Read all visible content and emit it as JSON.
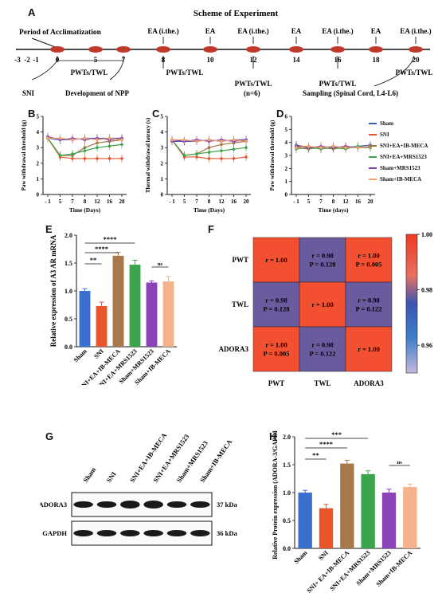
{
  "panel_letters": {
    "a": "A",
    "b": "B",
    "c": "C",
    "d": "D",
    "e": "E",
    "f": "F",
    "g": "G",
    "h": "H"
  },
  "scheme": {
    "title": "Scheme of Experiment",
    "acclimatization": "Period of Acclimatization",
    "days": [
      "-3",
      "-2",
      "-1",
      "0",
      "5",
      "7",
      "8",
      "10",
      "12",
      "14",
      "16",
      "18",
      "20"
    ],
    "ea_labels": [
      {
        "day": "8",
        "text": "EA (i.the.)"
      },
      {
        "day": "10",
        "text": "EA"
      },
      {
        "day": "12",
        "text": "EA (i.the.)"
      },
      {
        "day": "14",
        "text": "EA"
      },
      {
        "day": "16",
        "text": "EA (i.the.)"
      },
      {
        "day": "18",
        "text": "EA"
      },
      {
        "day": "20",
        "text": "EA (i.the.)"
      }
    ],
    "pwt_labels": [
      "PWTs/TWL",
      "PWTs/TWL",
      "PWTs/TWL",
      "PWTs/TWL",
      "PWTs/TWL"
    ],
    "sni": "SNI",
    "npp": "Development of NPP",
    "n": "(n=6)",
    "sampling": "Sampling (Spinal Cord, L4-L6)"
  },
  "legend": {
    "items": [
      {
        "name": "Sham",
        "color": "#3a5db5"
      },
      {
        "name": "SNI",
        "color": "#e8562a"
      },
      {
        "name": "SNI+EA+IB-MECA",
        "color": "#a07040"
      },
      {
        "name": "SNI+EA+MRS1523",
        "color": "#3aa54a"
      },
      {
        "name": "Sham+MRS1523",
        "color": "#7a3fb0"
      },
      {
        "name": "Sham+IB-MECA",
        "color": "#f2a072"
      }
    ]
  },
  "chart_data": [
    {
      "id": "B",
      "type": "line",
      "ylabel": "Paw withdrawal threshold (g)",
      "xlabel": "Time (Days)",
      "x": [
        "- 1",
        "5",
        "7",
        "8",
        "12",
        "16",
        "20"
      ],
      "ylim": [
        0,
        5
      ],
      "yticks": [
        "0",
        "1",
        "2",
        "3",
        "4",
        "5"
      ],
      "series": [
        {
          "name": "Sham",
          "values": [
            3.6,
            3.5,
            3.5,
            3.6,
            3.6,
            3.6,
            3.6
          ]
        },
        {
          "name": "SNI",
          "values": [
            3.6,
            2.4,
            2.3,
            2.3,
            2.3,
            2.3,
            2.3
          ]
        },
        {
          "name": "SNI+EA+IB-MECA",
          "values": [
            3.6,
            2.5,
            2.5,
            3.0,
            3.3,
            3.4,
            3.5
          ]
        },
        {
          "name": "SNI+EA+MRS1523",
          "values": [
            3.6,
            2.5,
            2.6,
            2.8,
            3.0,
            3.1,
            3.2
          ]
        },
        {
          "name": "Sham+MRS1523",
          "values": [
            3.7,
            3.5,
            3.6,
            3.5,
            3.6,
            3.5,
            3.6
          ]
        },
        {
          "name": "Sham+IB-MECA",
          "values": [
            3.6,
            3.6,
            3.5,
            3.6,
            3.5,
            3.6,
            3.5
          ]
        }
      ]
    },
    {
      "id": "C",
      "type": "line",
      "ylabel": "Thermal withdrawal latency (s)",
      "xlabel": "Time (Days)",
      "x": [
        "- 1",
        "5",
        "7",
        "8",
        "12",
        "16",
        "20"
      ],
      "ylim": [
        0,
        5
      ],
      "yticks": [
        "0",
        "1",
        "2",
        "3",
        "4",
        "5"
      ],
      "series": [
        {
          "name": "Sham",
          "values": [
            3.5,
            3.4,
            3.4,
            3.5,
            3.4,
            3.5,
            3.5
          ]
        },
        {
          "name": "SNI",
          "values": [
            3.5,
            2.4,
            2.4,
            2.3,
            2.3,
            2.3,
            2.4
          ]
        },
        {
          "name": "SNI+EA+IB-MECA",
          "values": [
            3.5,
            2.5,
            2.6,
            3.0,
            3.2,
            3.3,
            3.4
          ]
        },
        {
          "name": "SNI+EA+MRS1523",
          "values": [
            3.5,
            2.5,
            2.6,
            2.7,
            2.8,
            2.9,
            3.0
          ]
        },
        {
          "name": "Sham+MRS1523",
          "values": [
            3.4,
            3.4,
            3.5,
            3.4,
            3.5,
            3.4,
            3.5
          ]
        },
        {
          "name": "Sham+IB-MECA",
          "values": [
            3.5,
            3.5,
            3.4,
            3.5,
            3.4,
            3.5,
            3.4
          ]
        }
      ]
    },
    {
      "id": "D",
      "type": "line",
      "ylabel": "Paw withdrawal threshold (g)",
      "xlabel": "Time (days)",
      "x": [
        "- 1",
        "5",
        "7",
        "8",
        "12",
        "16",
        "20"
      ],
      "ylim": [
        0,
        6
      ],
      "yticks": [
        "0",
        "1",
        "2",
        "3",
        "4",
        "5",
        "6"
      ],
      "series": [
        {
          "name": "Sham",
          "values": [
            3.8,
            3.6,
            3.6,
            3.7,
            3.6,
            3.7,
            3.8
          ]
        },
        {
          "name": "SNI",
          "values": [
            3.7,
            3.7,
            3.5,
            3.6,
            3.7,
            3.6,
            3.7
          ]
        },
        {
          "name": "SNI+EA+IB-MECA",
          "values": [
            3.6,
            3.5,
            3.6,
            3.5,
            3.6,
            3.6,
            3.6
          ]
        },
        {
          "name": "SNI+EA+MRS1523",
          "values": [
            3.5,
            3.6,
            3.5,
            3.6,
            3.5,
            3.7,
            3.6
          ]
        },
        {
          "name": "Sham+MRS1523",
          "values": [
            3.7,
            3.6,
            3.7,
            3.6,
            3.7,
            3.6,
            3.7
          ]
        },
        {
          "name": "Sham+IB-MECA",
          "values": [
            3.6,
            3.7,
            3.6,
            3.7,
            3.6,
            3.6,
            3.7
          ]
        }
      ]
    },
    {
      "id": "E",
      "type": "bar",
      "ylabel": "Relative expression of A3 AR mRNA",
      "categories": [
        "Sham",
        "SNI",
        "SNI+EA+IB-MECA",
        "SNI+EA+MRS1523",
        "Sham+MRS1523",
        "Sham+IB-MECA"
      ],
      "values": [
        1.0,
        0.73,
        1.63,
        1.47,
        1.15,
        1.17
      ],
      "errors": [
        0.04,
        0.07,
        0.06,
        0.08,
        0.03,
        0.09
      ],
      "ylim": [
        0,
        2.0
      ],
      "yticks": [
        "0.0",
        "0.5",
        "1.0",
        "1.5",
        "2.0"
      ],
      "significance": [
        "**",
        "****",
        "****",
        "ns"
      ]
    },
    {
      "id": "F",
      "type": "heatmap",
      "rows": [
        "PWT",
        "TWL",
        "ADORA3"
      ],
      "cols": [
        "PWT",
        "TWL",
        "ADORA3"
      ],
      "values": [
        [
          1.0,
          0.98,
          1.0
        ],
        [
          0.98,
          1.0,
          0.98
        ],
        [
          1.0,
          0.98,
          1.0
        ]
      ],
      "cells": [
        [
          "r = 1.00",
          "r = 0.98\nP = 0.128",
          "r = 1.00\nP = 0.005"
        ],
        [
          "r = 0.98\nP = 0.128",
          "r = 1.00",
          "r = 0.98\nP = 0.122"
        ],
        [
          "r = 1.00\nP = 0.005",
          "r = 0.98\nP = 0.122",
          "r = 1.00"
        ]
      ],
      "colorbar": {
        "ticks": [
          "1.00",
          "0.98",
          "0.96"
        ],
        "range": [
          0.95,
          1.0
        ]
      }
    },
    {
      "id": "H",
      "type": "bar",
      "ylabel": "Relative Protein expression (ADORA-3/GAPDH)",
      "categories": [
        "Sham",
        "SNI",
        "SNI+ EA+IB-MECA",
        "SNI+EA+MRS1523",
        "Sham+MRS1523",
        "Sham+IB-MECA"
      ],
      "values": [
        1.0,
        0.72,
        1.52,
        1.33,
        1.0,
        1.1
      ],
      "errors": [
        0.04,
        0.07,
        0.06,
        0.06,
        0.06,
        0.05
      ],
      "ylim": [
        0,
        2.0
      ],
      "yticks": [
        "0.0",
        "0.5",
        "1.0",
        "1.5",
        "2.0"
      ],
      "significance": [
        "**",
        "****",
        "***",
        "ns"
      ]
    }
  ],
  "western": {
    "lanes": [
      "Sham",
      "SNI",
      "SNI+EA+IB-MECA",
      "SNI+EA+MRS1523",
      "Sham+MRS1523",
      "Sham+IB-MECA"
    ],
    "rows": [
      {
        "name": "ADORA3",
        "kda": "37 kDa"
      },
      {
        "name": "GAPDH",
        "kda": "36 kDa"
      }
    ]
  }
}
